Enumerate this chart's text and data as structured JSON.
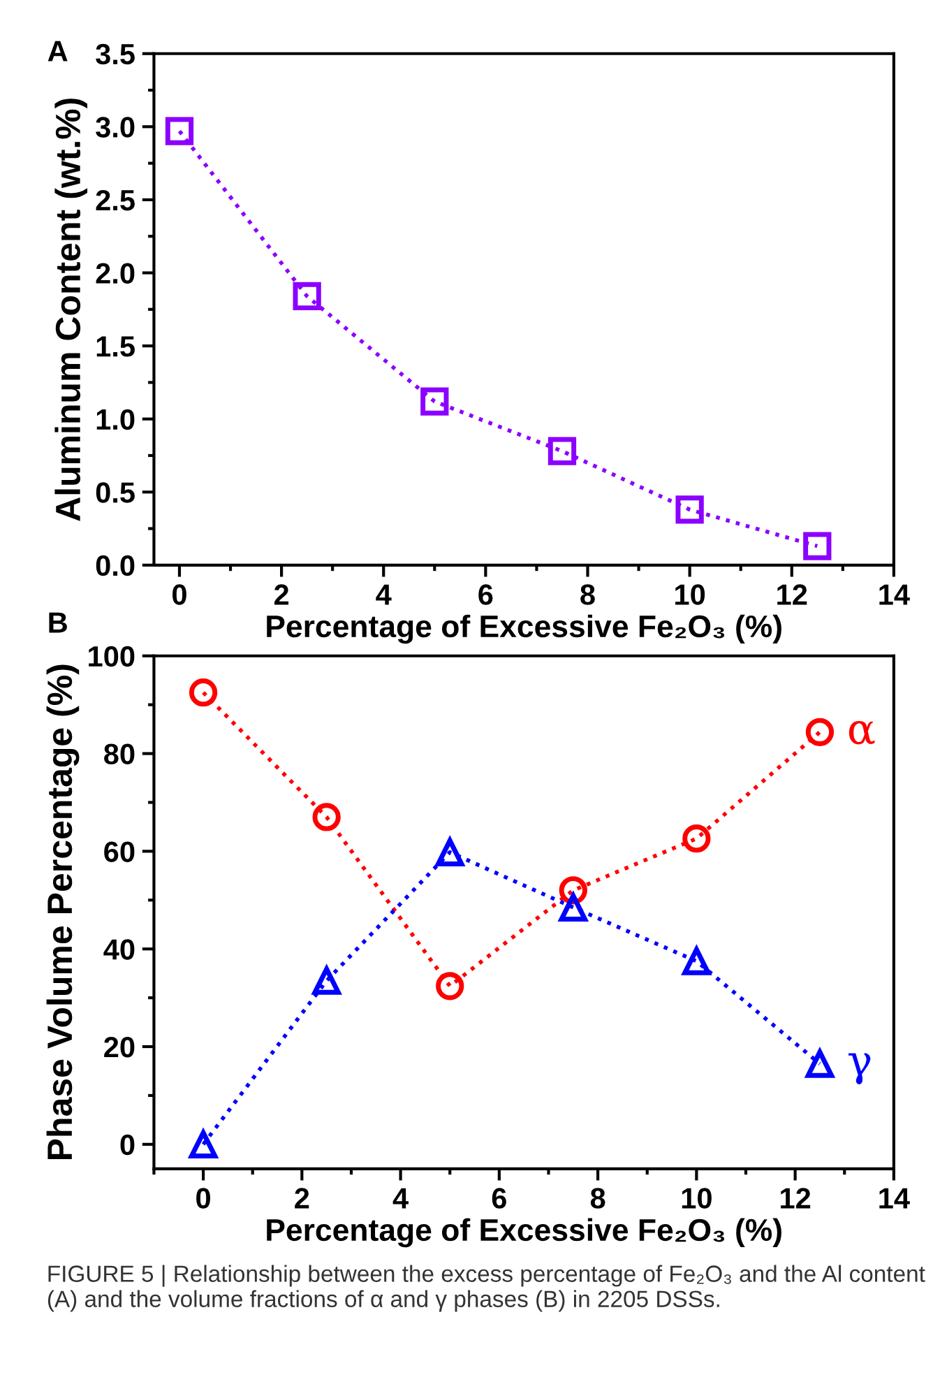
{
  "chart_data": [
    {
      "type": "line",
      "xlabel": "Percentage of Excessive Fe₂O₃ (%)",
      "ylabel": "Aluminum Content (wt.%)",
      "annotations": [
        "A"
      ],
      "x": [
        0,
        2.5,
        5,
        7.5,
        10,
        12.5
      ],
      "series": [
        {
          "color": "#8b00ff",
          "values": [
            2.97,
            1.84,
            1.12,
            0.78,
            0.38,
            0.13
          ],
          "marker": "square"
        }
      ],
      "xlim": [
        -0.5,
        14
      ],
      "xticks": [
        0,
        2,
        4,
        6,
        8,
        10,
        12,
        14
      ],
      "ylim": [
        0,
        3.5
      ],
      "yticks": [
        {
          "value": 0,
          "label": "0.0"
        },
        0.5,
        {
          "value": 1,
          "label": "1.0"
        },
        1.5,
        {
          "value": 2,
          "label": "2.0"
        },
        2.5,
        {
          "value": 3,
          "label": "3.0"
        },
        3.5
      ],
      "grid": false,
      "legend": false,
      "line_style": "dotted"
    },
    {
      "type": "line",
      "xlabel": "Percentage of Excessive Fe₂O₃ (%)",
      "ylabel": "Phase Volume Percentage (%)",
      "annotations": [
        "B",
        "FIGURE 5 | Relationship between the excess percentage of Fe₂O₃ and the Al content (A) and the volume fractions of α and γ phases (B) in 2205 DSSs."
      ],
      "x": [
        0,
        2.5,
        5,
        7.5,
        10,
        12.5
      ],
      "series": [
        {
          "name": "α",
          "color": "#ff0000",
          "values": [
            92.5,
            67,
            32.4,
            52,
            62.6,
            84.4
          ],
          "marker": "circle"
        },
        {
          "name": "γ",
          "color": "#0000ff",
          "values": [
            0,
            33.5,
            59.8,
            48.5,
            37.5,
            16.5
          ],
          "marker": "triangle"
        }
      ],
      "xlim": [
        -1,
        14
      ],
      "xticks": [
        0,
        2,
        4,
        6,
        8,
        10,
        12,
        14
      ],
      "ylim": [
        -5,
        100
      ],
      "yticks": [
        0,
        20,
        40,
        60,
        80,
        100
      ],
      "grid": false,
      "legend": false,
      "line_style": "dotted"
    }
  ]
}
